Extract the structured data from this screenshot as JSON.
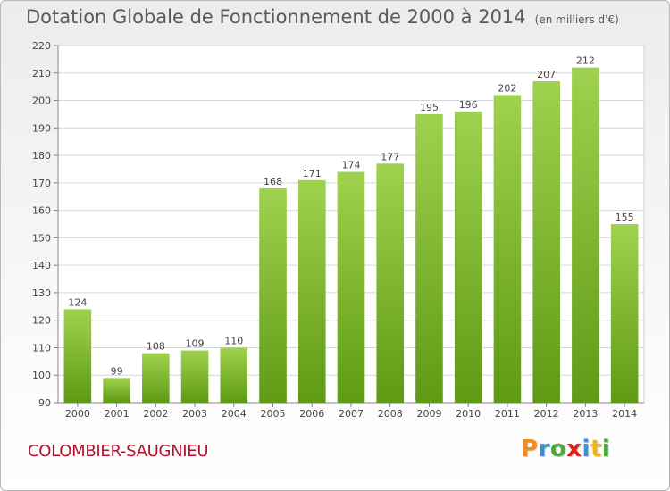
{
  "header": {
    "title": "Dotation Globale de Fonctionnement de 2000 à 2014",
    "subtitle": "(en milliers d'€)"
  },
  "footer": {
    "commune": "COLOMBIER-SAUGNIEU",
    "logo_text": "Proxiti"
  },
  "chart_data": {
    "type": "bar",
    "title": "Dotation Globale de Fonctionnement de 2000 à 2014",
    "subtitle": "(en milliers d'€)",
    "categories": [
      "2000",
      "2001",
      "2002",
      "2003",
      "2004",
      "2005",
      "2006",
      "2007",
      "2008",
      "2009",
      "2010",
      "2011",
      "2012",
      "2013",
      "2014"
    ],
    "values": [
      124,
      99,
      108,
      109,
      110,
      168,
      171,
      174,
      177,
      195,
      196,
      202,
      207,
      212,
      155
    ],
    "ylim": [
      90,
      220
    ],
    "yticks": [
      90,
      100,
      110,
      120,
      130,
      140,
      150,
      160,
      170,
      180,
      190,
      200,
      210,
      220
    ],
    "grid": true,
    "bar_color_top": "#9fd24e",
    "bar_color_bottom": "#5f9a14"
  },
  "colors": {
    "grid": "#d6d6d6",
    "axis_text": "#444444",
    "commune": "#b3112a"
  }
}
